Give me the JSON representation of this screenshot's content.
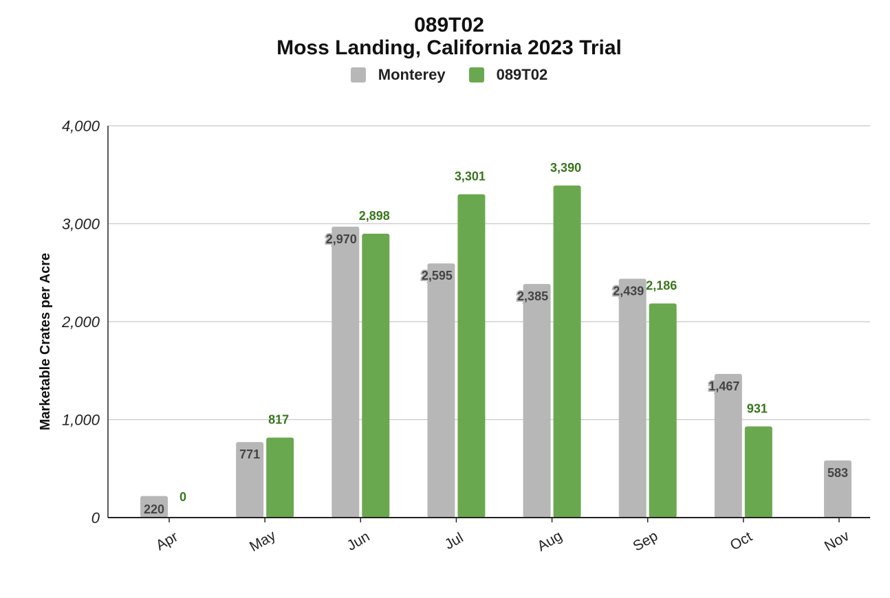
{
  "chart_data": {
    "type": "bar",
    "title": "089T02",
    "subtitle": "Moss Landing, California 2023 Trial",
    "ylabel": "Marketable Crates per Acre",
    "xlabel": "",
    "ylim": [
      0,
      4000
    ],
    "yticks": [
      "0",
      "1,000",
      "2,000",
      "3,000",
      "4,000"
    ],
    "yticks_values": [
      0,
      1000,
      2000,
      3000,
      4000
    ],
    "grid": true,
    "legend_position": "top-center",
    "categories": [
      "Apr",
      "May",
      "Jun",
      "Jul",
      "Aug",
      "Sep",
      "Oct",
      "Nov"
    ],
    "series": [
      {
        "name": "Monterey",
        "color": "#b7b7b7",
        "label_color": "#444444",
        "values": [
          220,
          771,
          2970,
          2595,
          2385,
          2439,
          1467,
          583
        ],
        "labels": [
          "220",
          "771",
          "2,970",
          "2,595",
          "2,385",
          "2,439",
          "1,467",
          "583"
        ]
      },
      {
        "name": "089T02",
        "color": "#6aa84f",
        "label_color": "#38761d",
        "values": [
          0,
          817,
          2898,
          3301,
          3390,
          2186,
          931,
          null
        ],
        "labels": [
          "0",
          "817",
          "2,898",
          "3,301",
          "3,390",
          "2,186",
          "931",
          ""
        ]
      }
    ]
  }
}
